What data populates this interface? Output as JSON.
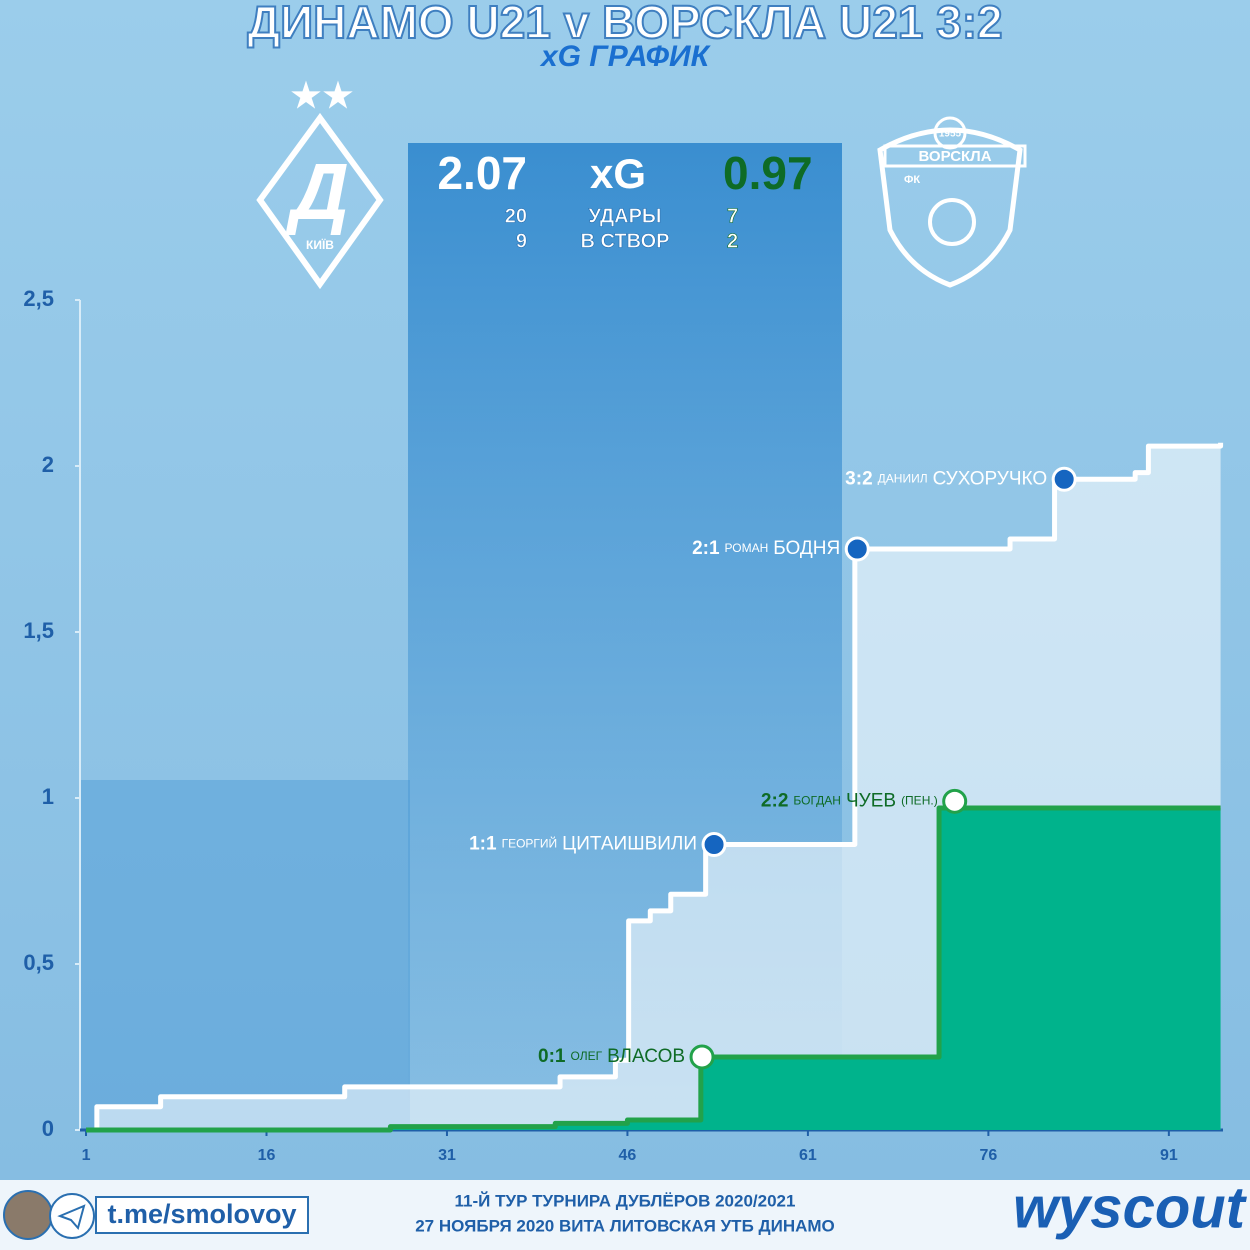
{
  "chart_data": {
    "type": "line",
    "title": "ДИНАМО U21 v ВОРСКЛА U21 3:2",
    "subtitle": "xG ГРАФИК",
    "xlim": [
      0.5,
      95.5
    ],
    "xticks": [
      1,
      16,
      31,
      46,
      61,
      76,
      91
    ],
    "ylim": [
      0,
      2.5
    ],
    "yticks": [
      0,
      {
        "value": 0.5,
        "label": "0,5"
      },
      1,
      {
        "value": 1.5,
        "label": "1,5"
      },
      2,
      {
        "value": 2.5,
        "label": "2,5"
      }
    ],
    "series": [
      {
        "name": "ДИНАМО U21",
        "color": "#ffffff",
        "x": [
          1,
          1.9,
          7.2,
          22.5,
          40.4,
          45,
          46.1,
          47.9,
          49.6,
          52.5,
          64.9,
          77.8,
          81.5,
          88.2,
          89.3,
          95.3
        ],
        "values": [
          0,
          0.07,
          0.1,
          0.13,
          0.16,
          0.21,
          0.63,
          0.66,
          0.71,
          0.86,
          1.75,
          1.78,
          1.96,
          1.98,
          2.06,
          2.07
        ],
        "goals": [
          {
            "x": 53.2,
            "y": 0.86,
            "score": "1:1",
            "first": "ГЕОРГИЙ",
            "last": "ЦИТАИШВИЛИ"
          },
          {
            "x": 65.1,
            "y": 1.75,
            "score": "2:1",
            "first": "РОМАН",
            "last": "БОДНЯ"
          },
          {
            "x": 82.3,
            "y": 1.96,
            "score": "3:2",
            "first": "ДАНИИЛ",
            "last": "СУХОРУЧКО"
          }
        ]
      },
      {
        "name": "ВОРСКЛА U21",
        "color": "#22a24a",
        "x": [
          1,
          26.3,
          40,
          46,
          52.1,
          71.9,
          95.3
        ],
        "values": [
          0,
          0.01,
          0.02,
          0.03,
          0.22,
          0.97,
          0.97
        ],
        "goals": [
          {
            "x": 52.2,
            "y": 0.22,
            "score": "0:1",
            "first": "ОЛЕГ",
            "last": "ВЛАСОВ"
          },
          {
            "x": 73.2,
            "y": 0.99,
            "score": "2:2",
            "first": "БОГДАН",
            "last": "ЧУЕВ",
            "note": "(ПЕН.)"
          }
        ]
      }
    ]
  },
  "stats": {
    "home_xg": "2.07",
    "label_xg": "xG",
    "away_xg": "0.97",
    "rows": [
      [
        "20",
        "УДАРЫ",
        "7"
      ],
      [
        "9",
        "В СТВОР",
        "2"
      ]
    ]
  },
  "logos": {
    "home_city": "КИЇВ",
    "away_name": "ВОРСКЛА",
    "away_prefix": "ФК",
    "away_year": "1955"
  },
  "footer": {
    "link": "t.me/smolovoy",
    "line1": "11-Й ТУР ТУРНИРА ДУБЛЁРОВ 2020/2021",
    "line2": "27 НОЯБРЯ 2020 ВИТА ЛИТОВСКАЯ УТБ ДИНАМО",
    "brand": "wyscout"
  }
}
